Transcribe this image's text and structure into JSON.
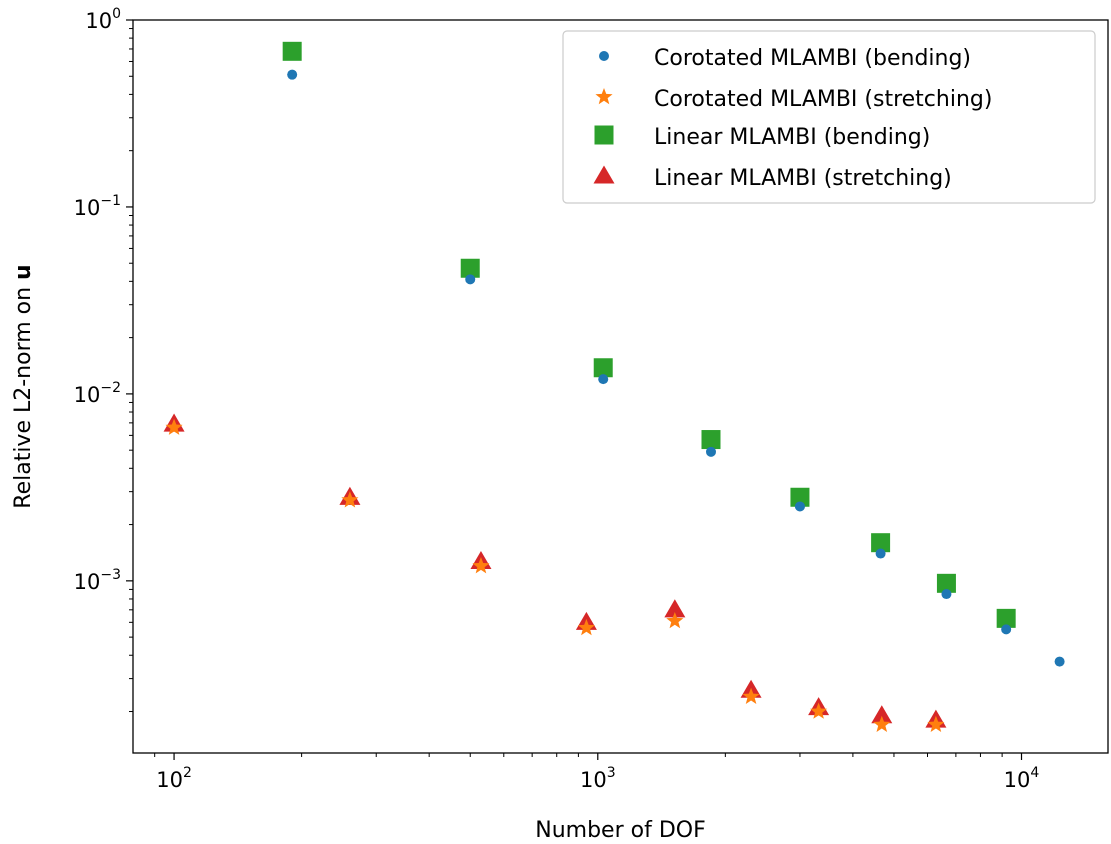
{
  "chart_data": {
    "type": "scatter",
    "title": "",
    "xlabel": "Number of DOF",
    "ylabel_prefix": "Relative L2-norm on ",
    "ylabel_bold": "u",
    "xscale": "log",
    "yscale": "log",
    "xlim": [
      80,
      16000
    ],
    "ylim": [
      0.00012,
      1.0
    ],
    "grid": false,
    "legend_position": "top-right",
    "xticks": [
      {
        "base": "10",
        "exp": "2",
        "value": 100
      },
      {
        "base": "10",
        "exp": "3",
        "value": 1000
      },
      {
        "base": "10",
        "exp": "4",
        "value": 10000
      }
    ],
    "yticks": [
      {
        "base": "10",
        "exp": "0",
        "value": 1
      },
      {
        "base": "10",
        "exp": "−1",
        "value": 0.1
      },
      {
        "base": "10",
        "exp": "−2",
        "value": 0.01
      },
      {
        "base": "10",
        "exp": "−3",
        "value": 0.001
      }
    ],
    "series": [
      {
        "name": "Corotated MLAMBI (bending)",
        "marker": "circle",
        "color": "#1f77b4",
        "points": [
          [
            190,
            0.51
          ],
          [
            500,
            0.041
          ],
          [
            1030,
            0.012
          ],
          [
            1850,
            0.0049
          ],
          [
            3000,
            0.0025
          ],
          [
            4650,
            0.0014
          ],
          [
            6650,
            0.00085
          ],
          [
            9200,
            0.00055
          ],
          [
            12300,
            0.00037
          ]
        ]
      },
      {
        "name": "Corotated MLAMBI (stretching)",
        "marker": "star",
        "color": "#ff7f0e",
        "points": [
          [
            100,
            0.0066
          ],
          [
            260,
            0.0027
          ],
          [
            530,
            0.0012
          ],
          [
            940,
            0.00056
          ],
          [
            1520,
            0.00061
          ],
          [
            2300,
            0.00024
          ],
          [
            3320,
            0.0002
          ],
          [
            4680,
            0.00017
          ],
          [
            6280,
            0.00017
          ]
        ]
      },
      {
        "name": "Linear MLAMBI (bending)",
        "marker": "square",
        "color": "#2ca02c",
        "points": [
          [
            190,
            0.68
          ],
          [
            500,
            0.047
          ],
          [
            1030,
            0.0138
          ],
          [
            1850,
            0.0057
          ],
          [
            3000,
            0.0028
          ],
          [
            4650,
            0.0016
          ],
          [
            6650,
            0.00097
          ],
          [
            9200,
            0.00063
          ]
        ]
      },
      {
        "name": "Linear MLAMBI (stretching)",
        "marker": "triangle",
        "color": "#d62728",
        "points": [
          [
            100,
            0.0069
          ],
          [
            260,
            0.0028
          ],
          [
            530,
            0.00127
          ],
          [
            940,
            0.0006
          ],
          [
            1520,
            0.0007
          ],
          [
            2300,
            0.00026
          ],
          [
            3320,
            0.00021
          ],
          [
            4680,
            0.00019
          ],
          [
            6280,
            0.00018
          ]
        ]
      }
    ]
  }
}
